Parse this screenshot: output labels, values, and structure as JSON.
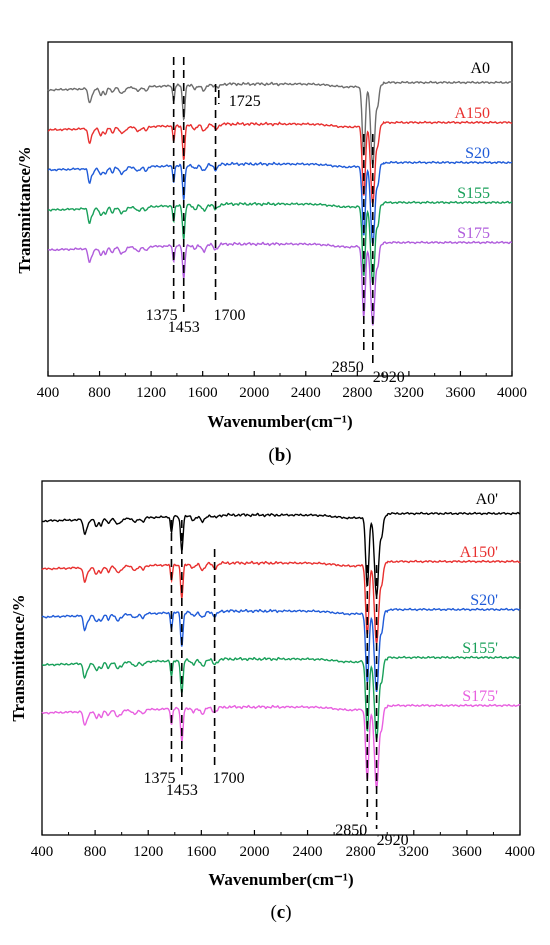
{
  "chart_data": [
    {
      "type": "line",
      "panel_label": "(b)",
      "panel_letter": "b",
      "xlabel": "Wavenumber(cm⁻¹)",
      "ylabel": "Transmittance/%",
      "xlim": [
        400,
        4000
      ],
      "xticks": [
        400,
        800,
        1200,
        1600,
        2000,
        2400,
        2800,
        3200,
        3600,
        4000
      ],
      "yticks_shown": false,
      "series": [
        {
          "name": "A0",
          "color": "#6d6d6d",
          "offset": 0
        },
        {
          "name": "A150",
          "color": "#e8302f",
          "offset": 1
        },
        {
          "name": "S20",
          "color": "#1f5bd8",
          "offset": 2
        },
        {
          "name": "S155",
          "color": "#19a05a",
          "offset": 3
        },
        {
          "name": "S175",
          "color": "#b05ddc",
          "offset": 4
        }
      ],
      "annotations": [
        {
          "label": "1375",
          "x": 1375
        },
        {
          "label": "1453",
          "x": 1453
        },
        {
          "label": "1700",
          "x": 1700
        },
        {
          "label": "1725",
          "x": 1725
        },
        {
          "label": "2850",
          "x": 2850
        },
        {
          "label": "2920",
          "x": 2920
        }
      ]
    },
    {
      "type": "line",
      "panel_label": "(c)",
      "panel_letter": "c",
      "xlabel": "Wavenumber(cm⁻¹)",
      "ylabel": "Transmittance/%",
      "xlim": [
        400,
        4000
      ],
      "xticks": [
        400,
        800,
        1200,
        1600,
        2000,
        2400,
        2800,
        3200,
        3600,
        4000
      ],
      "yticks_shown": false,
      "series": [
        {
          "name": "A0'",
          "color": "#000000",
          "offset": 0
        },
        {
          "name": "A150'",
          "color": "#e8302f",
          "offset": 1
        },
        {
          "name": "S20'",
          "color": "#1f5bd8",
          "offset": 2
        },
        {
          "name": "S155'",
          "color": "#19a05a",
          "offset": 3
        },
        {
          "name": "S175'",
          "color": "#e860e0",
          "offset": 4
        }
      ],
      "annotations": [
        {
          "label": "1375",
          "x": 1375
        },
        {
          "label": "1453",
          "x": 1453
        },
        {
          "label": "1700",
          "x": 1700
        },
        {
          "label": "2850",
          "x": 2850
        },
        {
          "label": "2920",
          "x": 2920
        }
      ]
    }
  ]
}
